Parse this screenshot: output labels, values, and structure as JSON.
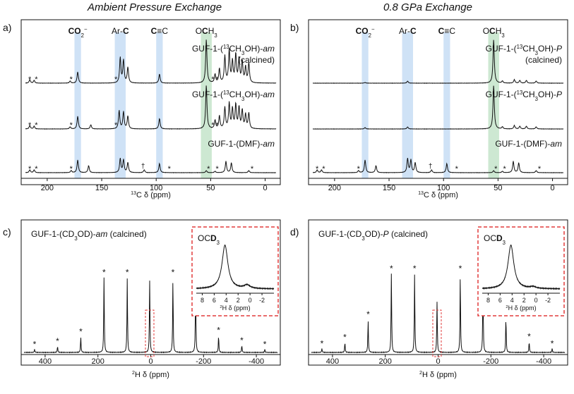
{
  "headers": {
    "left": "Ambient Pressure Exchange",
    "right": "0.8 GPa Exchange"
  },
  "colors": {
    "blue_band": "#cfe2f6",
    "green_band": "#cde8d2",
    "inset_border": "#e23b3b",
    "trace": "#111111"
  },
  "chart_data": [
    {
      "panel": "a)",
      "type": "line",
      "nucleus": "13C",
      "xlabel": "13C δ (ppm)",
      "xlim": [
        220,
        -10
      ],
      "xticks": [
        200,
        150,
        100,
        50,
        0
      ],
      "bands": [
        {
          "label": "CO2−",
          "center": 172,
          "width": 6,
          "color": "blue"
        },
        {
          "label": "Ar-C",
          "center": 133,
          "width": 10,
          "color": "blue"
        },
        {
          "label": "C≡C",
          "center": 97,
          "width": 6,
          "color": "blue"
        },
        {
          "label": "OCH3",
          "center": 54,
          "width": 10,
          "color": "green"
        }
      ],
      "band_labels": [
        "CO",
        "2",
        "−",
        "Ar-",
        "C",
        "C",
        "≡C",
        "O",
        "C",
        "H",
        "3"
      ],
      "series": [
        {
          "name": "GUF-1-(13CH3OH)-am (calcined)",
          "label_lines": [
            "GUF-1-(",
            "13",
            "CH",
            "3",
            "OH)-",
            "am",
            "(calcined)"
          ],
          "peaks": [
            [
              216,
              5
            ],
            [
              212,
              4
            ],
            [
              179,
              3
            ],
            [
              172,
              16
            ],
            [
              133,
              36
            ],
            [
              130,
              32
            ],
            [
              126,
              22
            ],
            [
              97,
              13
            ],
            [
              54,
              62
            ],
            [
              46,
              12
            ],
            [
              42,
              20
            ],
            [
              37,
              38
            ],
            [
              33,
              46
            ],
            [
              30,
              30
            ],
            [
              27,
              40
            ],
            [
              24,
              34
            ],
            [
              21,
              30
            ],
            [
              18,
              22
            ],
            [
              15,
              28
            ]
          ],
          "stars": [
            216,
            210,
            178,
            137,
            48,
            44
          ]
        },
        {
          "name": "GUF-1-(13CH3OH)-am",
          "label_lines": [
            "GUF-1-(",
            "13",
            "CH",
            "3",
            "OH)-",
            "am"
          ],
          "peaks": [
            [
              216,
              5
            ],
            [
              212,
              4
            ],
            [
              179,
              3
            ],
            [
              172,
              18
            ],
            [
              160,
              6
            ],
            [
              134,
              26
            ],
            [
              130,
              24
            ],
            [
              126,
              18
            ],
            [
              97,
              15
            ],
            [
              54,
              62
            ],
            [
              46,
              12
            ],
            [
              42,
              18
            ],
            [
              37,
              30
            ],
            [
              33,
              36
            ],
            [
              30,
              28
            ],
            [
              27,
              34
            ],
            [
              24,
              30
            ],
            [
              21,
              26
            ],
            [
              18,
              20
            ],
            [
              15,
              22
            ]
          ],
          "stars": [
            216,
            210,
            178,
            137,
            48,
            44
          ]
        },
        {
          "name": "GUF-1-(DMF)-am",
          "label_lines": [
            "GUF-1-(DMF)-",
            "am"
          ],
          "peaks": [
            [
              216,
              4
            ],
            [
              212,
              4
            ],
            [
              178,
              3
            ],
            [
              172,
              18
            ],
            [
              162,
              10
            ],
            [
              133,
              20
            ],
            [
              130,
              18
            ],
            [
              126,
              14
            ],
            [
              111,
              4
            ],
            [
              97,
              13
            ],
            [
              54,
              3
            ],
            [
              46,
              2
            ],
            [
              36,
              16
            ],
            [
              31,
              14
            ],
            [
              15,
              3
            ]
          ],
          "stars": [
            216,
            210,
            178,
            88,
            52,
            44,
            12
          ],
          "dagger": 112
        }
      ]
    },
    {
      "panel": "b)",
      "type": "line",
      "nucleus": "13C",
      "xlabel": "13C δ (ppm)",
      "xlim": [
        220,
        -10
      ],
      "xticks": [
        200,
        150,
        100,
        50,
        0
      ],
      "bands": [
        {
          "label": "CO2−",
          "center": 172,
          "width": 6,
          "color": "blue"
        },
        {
          "label": "Ar-C",
          "center": 133,
          "width": 10,
          "color": "blue"
        },
        {
          "label": "C≡C",
          "center": 97,
          "width": 6,
          "color": "blue"
        },
        {
          "label": "OCH3",
          "center": 54,
          "width": 10,
          "color": "green"
        }
      ],
      "band_labels": [
        "CO",
        "2",
        "−",
        "Ar-",
        "C",
        "C",
        "≡C",
        "O",
        "C",
        "H",
        "3"
      ],
      "series": [
        {
          "name": "GUF-1-(13CH3OH)-P (calcined)",
          "label_lines": [
            "GUF-1-(",
            "13",
            "CH",
            "3",
            "OH)-",
            "P",
            "(calcined)"
          ],
          "peaks": [
            [
              172,
              1
            ],
            [
              133,
              3
            ],
            [
              54,
              62
            ],
            [
              46,
              3
            ],
            [
              35,
              5
            ],
            [
              30,
              4
            ],
            [
              24,
              4
            ],
            [
              15,
              3
            ]
          ],
          "stars": []
        },
        {
          "name": "GUF-1-(13CH3OH)-P",
          "label_lines": [
            "GUF-1-(",
            "13",
            "CH",
            "3",
            "OH)-",
            "P"
          ],
          "peaks": [
            [
              172,
              2
            ],
            [
              133,
              3
            ],
            [
              54,
              62
            ],
            [
              46,
              3
            ],
            [
              35,
              5
            ],
            [
              30,
              4
            ],
            [
              24,
              4
            ],
            [
              15,
              3
            ]
          ],
          "stars": []
        },
        {
          "name": "GUF-1-(DMF)-am",
          "label_lines": [
            "GUF-1-(DMF)-",
            "am"
          ],
          "peaks": [
            [
              216,
              4
            ],
            [
              212,
              4
            ],
            [
              178,
              3
            ],
            [
              172,
              18
            ],
            [
              162,
              10
            ],
            [
              133,
              20
            ],
            [
              130,
              18
            ],
            [
              126,
              14
            ],
            [
              111,
              4
            ],
            [
              97,
              13
            ],
            [
              54,
              3
            ],
            [
              46,
              2
            ],
            [
              36,
              16
            ],
            [
              31,
              14
            ],
            [
              15,
              3
            ]
          ],
          "stars": [
            216,
            210,
            178,
            88,
            52,
            44,
            12
          ],
          "dagger": 112
        }
      ]
    },
    {
      "panel": "c)",
      "type": "line",
      "nucleus": "2H",
      "title": "GUF-1-(CD3OD)-am (calcined)",
      "title_parts": [
        "GUF-1-(CD",
        "3",
        "OD)-",
        "am",
        " (calcined)"
      ],
      "xlabel": "2H δ (ppm)",
      "xlim": [
        480,
        -480
      ],
      "xticks": [
        400,
        200,
        0,
        -200,
        -400
      ],
      "peaks": [
        [
          440,
          4
        ],
        [
          353,
          8
        ],
        [
          265,
          20
        ],
        [
          177,
          95
        ],
        [
          89,
          95
        ],
        [
          4,
          92
        ],
        [
          -84,
          95
        ],
        [
          -170,
          95
        ],
        [
          -257,
          22
        ],
        [
          -345,
          9
        ],
        [
          -432,
          4
        ]
      ],
      "stars": [
        440,
        353,
        265,
        177,
        89,
        -84,
        -170,
        -257,
        -345,
        -432
      ],
      "inset": {
        "label": "OCD3",
        "label_parts": [
          "OC",
          "D",
          "3"
        ],
        "xlabel": "2H δ (ppm)",
        "xlim": [
          9,
          -4
        ],
        "xticks": [
          8,
          6,
          4,
          2,
          0,
          -2
        ],
        "peaks": [
          [
            4.2,
            1.0
          ],
          [
            0.5,
            0.08
          ]
        ]
      }
    },
    {
      "panel": "d)",
      "type": "line",
      "nucleus": "2H",
      "title": "GUF-1-(CD3OD)-P (calcined)",
      "title_parts": [
        "GUF-1-(CD",
        "3",
        "OD)-",
        "P",
        " (calcined)"
      ],
      "xlabel": "2H δ (ppm)",
      "xlim": [
        480,
        -480
      ],
      "xticks": [
        400,
        200,
        0,
        -200,
        -400
      ],
      "peaks": [
        [
          440,
          5
        ],
        [
          353,
          13
        ],
        [
          265,
          42
        ],
        [
          177,
          100
        ],
        [
          89,
          100
        ],
        [
          4,
          65
        ],
        [
          -84,
          100
        ],
        [
          -170,
          100
        ],
        [
          -257,
          46
        ],
        [
          -345,
          14
        ],
        [
          -432,
          5
        ]
      ],
      "stars": [
        440,
        353,
        265,
        177,
        89,
        -84,
        -170,
        -257,
        -345,
        -432
      ],
      "inset": {
        "label": "OCD3",
        "label_parts": [
          "OC",
          "D",
          "3"
        ],
        "xlabel": "2H δ (ppm)",
        "xlim": [
          9,
          -4
        ],
        "xticks": [
          8,
          6,
          4,
          2,
          0,
          -2
        ],
        "peaks": [
          [
            4.2,
            1.0
          ],
          [
            0.5,
            0.04
          ]
        ]
      }
    }
  ]
}
